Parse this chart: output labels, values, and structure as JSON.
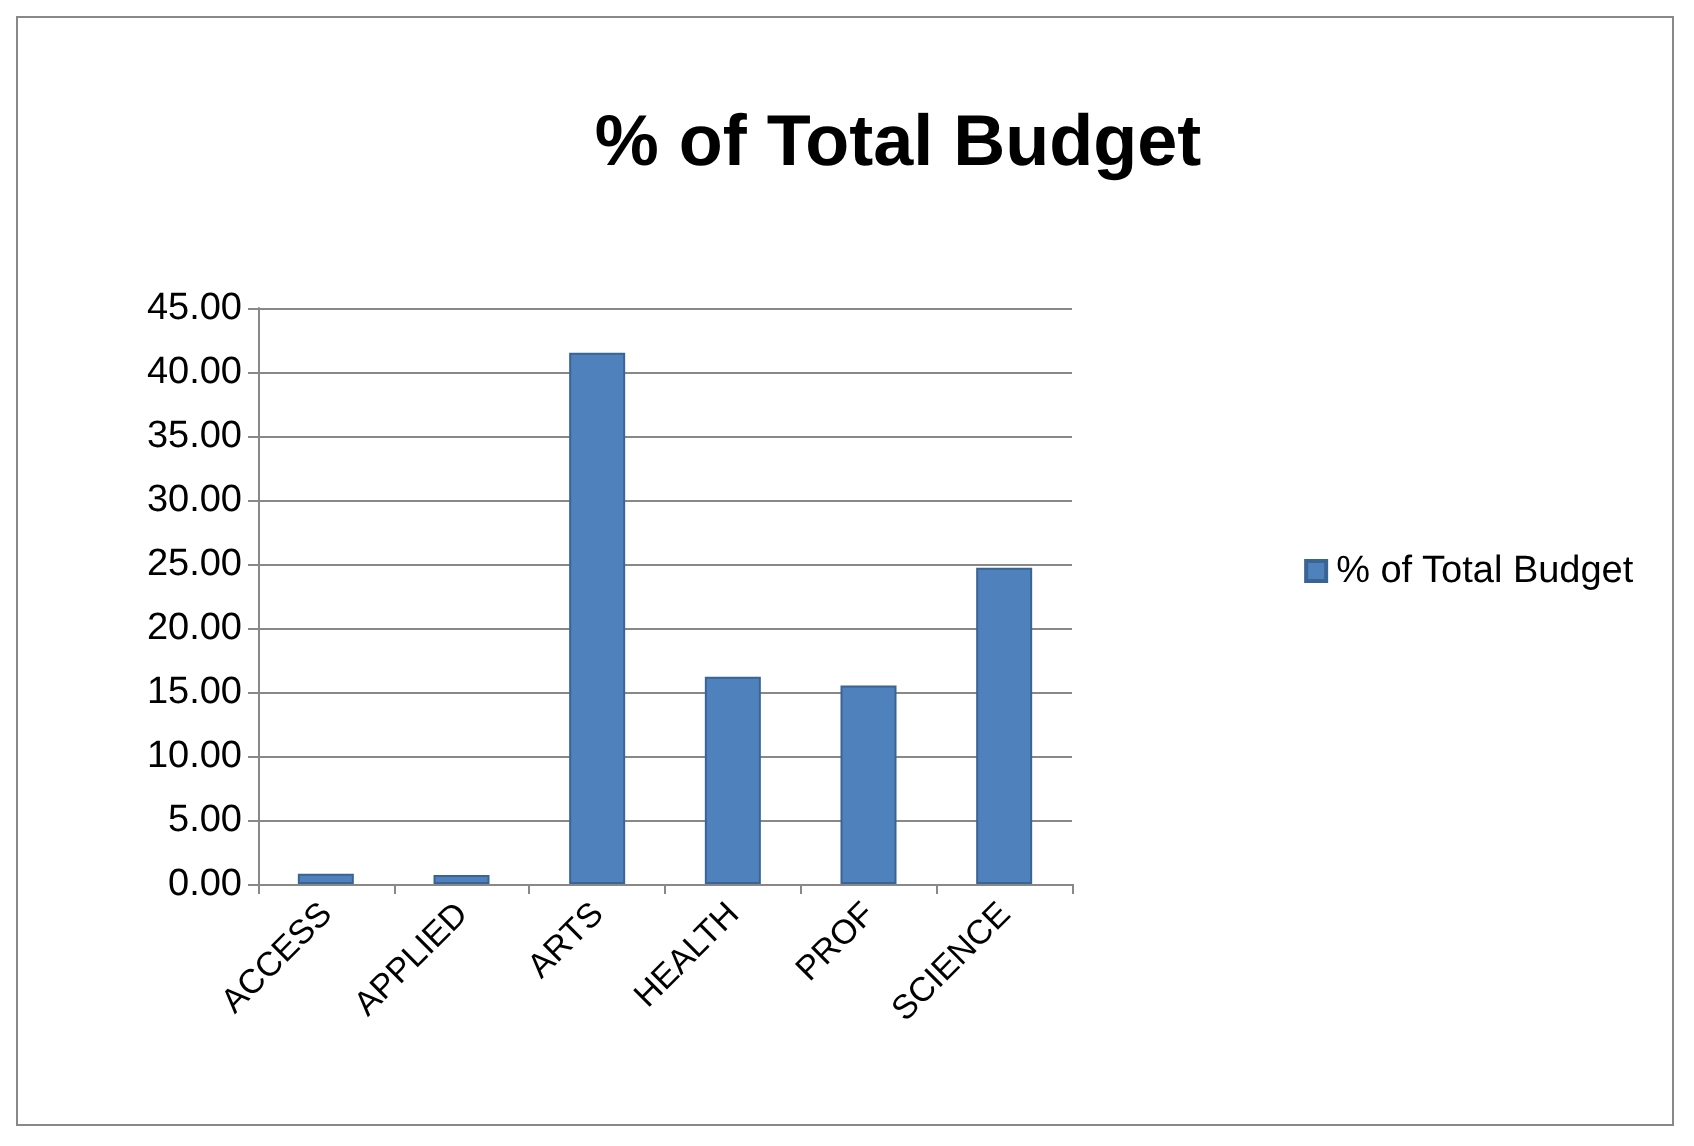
{
  "chart_data": {
    "type": "bar",
    "title": "% of Total Budget",
    "categories": [
      "ACCESS",
      "APPLIED",
      "ARTS",
      "HEALTH",
      "PROF",
      "SCIENCE"
    ],
    "series": [
      {
        "name": "% of Total Budget",
        "color": "#4f81bd",
        "values": [
          0.8,
          0.7,
          41.5,
          16.2,
          15.5,
          24.7
        ]
      }
    ],
    "ylim": [
      0,
      45
    ],
    "yticks": [
      {
        "value": 0,
        "label": "0.00"
      },
      {
        "value": 5,
        "label": "5.00"
      },
      {
        "value": 10,
        "label": "10.00"
      },
      {
        "value": 15,
        "label": "15.00"
      },
      {
        "value": 20,
        "label": "20.00"
      },
      {
        "value": 25,
        "label": "25.00"
      },
      {
        "value": 30,
        "label": "30.00"
      },
      {
        "value": 35,
        "label": "35.00"
      },
      {
        "value": 40,
        "label": "40.00"
      },
      {
        "value": 45,
        "label": "45.00"
      }
    ],
    "grid": "y",
    "legend": "right"
  }
}
